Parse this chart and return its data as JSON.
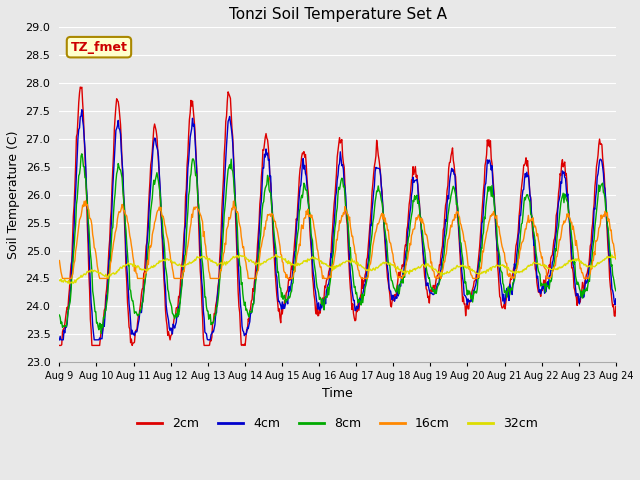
{
  "title": "Tonzi Soil Temperature Set A",
  "xlabel": "Time",
  "ylabel": "Soil Temperature (C)",
  "annotation": "TZ_fmet",
  "ylim": [
    23.0,
    29.0
  ],
  "yticks": [
    23.0,
    23.5,
    24.0,
    24.5,
    25.0,
    25.5,
    26.0,
    26.5,
    27.0,
    27.5,
    28.0,
    28.5,
    29.0
  ],
  "x_labels": [
    "Aug 9",
    "Aug 10",
    "Aug 11",
    "Aug 12",
    "Aug 13",
    "Aug 14",
    "Aug 15",
    "Aug 16",
    "Aug 17",
    "Aug 18",
    "Aug 19",
    "Aug 20",
    "Aug 21",
    "Aug 22",
    "Aug 23",
    "Aug 24"
  ],
  "legend": [
    "2cm",
    "4cm",
    "8cm",
    "16cm",
    "32cm"
  ],
  "line_colors": [
    "#dd0000",
    "#0000cc",
    "#00aa00",
    "#ff8800",
    "#dddd00"
  ],
  "bg_color": "#e8e8e8",
  "grid_color": "#ffffff",
  "n_points": 720,
  "figsize": [
    6.4,
    4.8
  ],
  "dpi": 100
}
